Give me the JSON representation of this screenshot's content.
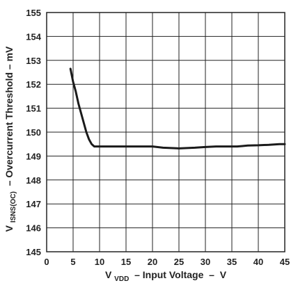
{
  "chart_data": {
    "type": "line",
    "title": "",
    "xlabel": {
      "prefix": "V",
      "subscript": "VDD",
      "suffix": " – Input Voltage  –  V"
    },
    "ylabel": {
      "prefix": "V",
      "subscript": "ISNS(OC)",
      "suffix": " – Overcurrent Threshold – mV"
    },
    "xlim": [
      0,
      45
    ],
    "ylim": [
      145,
      155
    ],
    "xticks": [
      0,
      5,
      10,
      15,
      20,
      25,
      30,
      35,
      40,
      45
    ],
    "xtick_labels": [
      "0",
      "5",
      "10",
      "15",
      "20",
      "25",
      "30",
      "35",
      "40",
      "45"
    ],
    "yticks": [
      145,
      146,
      147,
      148,
      149,
      150,
      151,
      152,
      153,
      154,
      155
    ],
    "ytick_labels": [
      "145",
      "146",
      "147",
      "148",
      "149",
      "150",
      "151",
      "152",
      "153",
      "154",
      "155"
    ],
    "grid": true,
    "legend": "none",
    "colors": {
      "line": "#1a1a1a",
      "grid": "#222222",
      "axis": "#222222",
      "text": "#222222"
    },
    "series": [
      {
        "x": [
          4.5,
          5,
          5.5,
          6,
          6.5,
          7,
          7.5,
          8,
          8.5,
          9,
          10,
          12,
          15,
          18,
          20,
          22,
          25,
          28,
          30,
          32,
          35,
          36,
          37,
          38,
          40,
          42,
          44,
          45
        ],
        "y": [
          152.65,
          152.1,
          151.7,
          151.2,
          150.8,
          150.4,
          150.0,
          149.7,
          149.5,
          149.4,
          149.4,
          149.4,
          149.4,
          149.4,
          149.4,
          149.35,
          149.32,
          149.35,
          149.38,
          149.4,
          149.4,
          149.4,
          149.42,
          149.44,
          149.45,
          149.47,
          149.5,
          149.5
        ]
      }
    ]
  }
}
